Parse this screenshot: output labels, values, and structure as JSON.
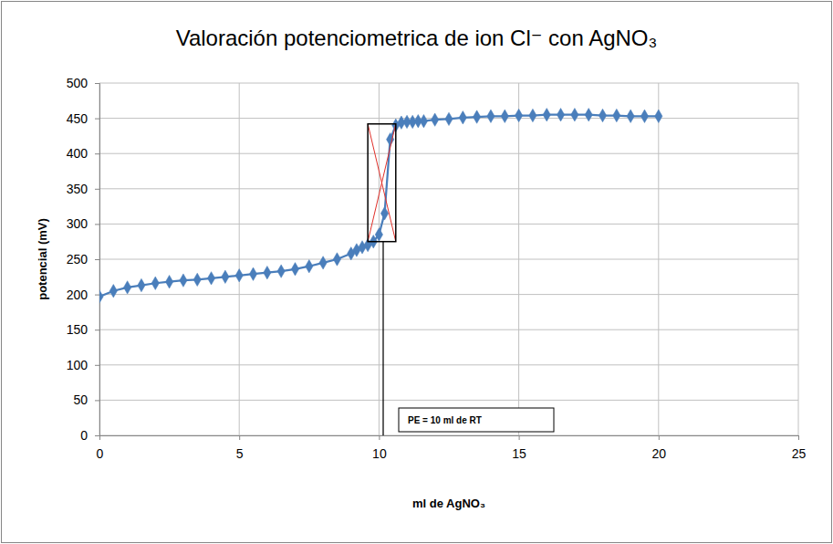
{
  "chart_data": {
    "type": "line",
    "title": "Valoración potenciometrica de ion Cl⁻ con AgNO₃",
    "x_label": "ml de AgNO₃",
    "y_label": "potencial (mV)",
    "x": [
      0,
      0.5,
      1,
      1.5,
      2,
      2.5,
      3,
      3.5,
      4,
      4.5,
      5,
      5.5,
      6,
      6.5,
      7,
      7.5,
      8,
      8.5,
      9,
      9.2,
      9.4,
      9.6,
      9.8,
      10,
      10.2,
      10.4,
      10.6,
      10.8,
      11,
      11.2,
      11.4,
      11.6,
      12,
      12.5,
      13,
      13.5,
      14,
      14.5,
      15,
      15.5,
      16,
      16.5,
      17,
      17.5,
      18,
      18.5,
      19,
      19.5,
      20
    ],
    "series": [
      {
        "color": "#4a7ebb",
        "marker": "diamond",
        "line_style": "solid",
        "values": [
          197,
          205,
          210,
          213,
          216,
          218,
          220,
          221,
          223,
          225,
          227,
          229,
          231,
          233,
          236,
          240,
          245,
          250,
          258,
          263,
          267,
          270,
          275,
          285,
          315,
          420,
          440,
          444,
          445,
          445,
          446,
          446,
          448,
          449,
          451,
          452,
          453,
          453,
          454,
          454,
          455,
          455,
          455,
          455,
          454,
          454,
          453,
          453,
          453
        ]
      }
    ],
    "xlim": [
      0,
      25
    ],
    "xticks": [
      0,
      5,
      10,
      15,
      20,
      25
    ],
    "ylim": [
      0,
      500
    ],
    "yticks": [
      0,
      50,
      100,
      150,
      200,
      250,
      300,
      350,
      400,
      450,
      500
    ],
    "grid": true,
    "annotations": [
      {
        "text": "PE = 10 ml de RT",
        "x": 10.15,
        "box_x": [
          9.6,
          10.6
        ],
        "box_y": [
          275,
          442
        ]
      }
    ]
  }
}
